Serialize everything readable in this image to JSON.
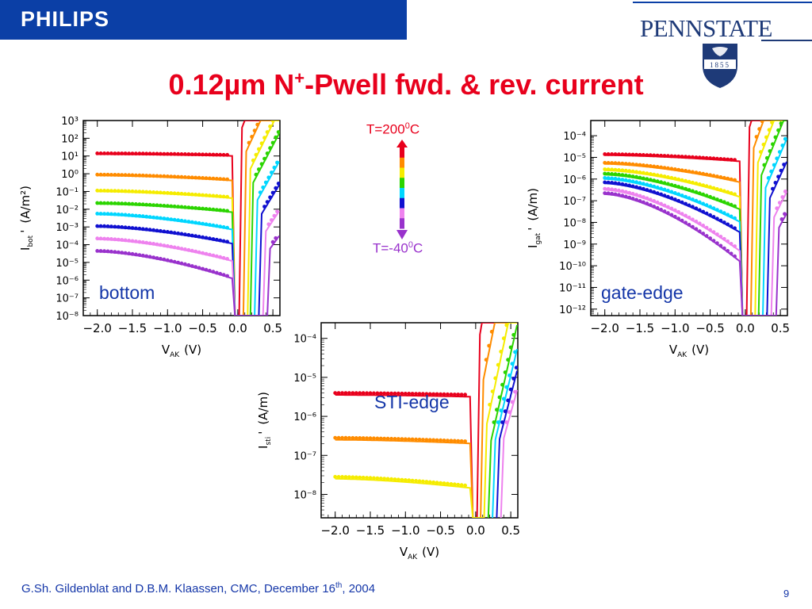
{
  "header": {
    "left_logo": "PHILIPS",
    "right_logo": "PENNSTATE",
    "seal_year": "1855",
    "title_main": "0.12µm N",
    "title_sup": "+",
    "title_rest": "-Pwell fwd. & rev. current"
  },
  "temperature_legend": {
    "top_label": "T=200",
    "top_sup": "0",
    "top_unit": "C",
    "bottom_label": "T=-40",
    "bottom_sup": "0",
    "bottom_unit": "C",
    "colors": [
      "#e8001c",
      "#ff8c00",
      "#f5ec00",
      "#2bd400",
      "#00d6ff",
      "#1010d0",
      "#ee82ee",
      "#9932cc"
    ]
  },
  "footer": {
    "text": "G.Sh. Gildenblat and D.B.M. Klaassen, CMC, December 16",
    "sup": "th",
    "text_end": ", 2004",
    "page": "9"
  },
  "chart_data": [
    {
      "type": "scatter",
      "panel_label": "bottom",
      "xlabel": "V_AK (V)",
      "ylabel": "I_bot' (A/m²)",
      "xlim": [
        -2.2,
        0.6
      ],
      "ylim": [
        -8,
        3
      ],
      "y_scale": "log",
      "x_ticks": [
        "−2.0",
        "−1.5",
        "−1.0",
        "−0.5",
        "0.0",
        "0.5"
      ],
      "y_ticks": [
        "10³",
        "10²",
        "10¹",
        "10⁰",
        "10⁻¹",
        "10⁻²",
        "10⁻³",
        "10⁻⁴",
        "10⁻⁵",
        "10⁻⁶",
        "10⁻⁷",
        "10⁻⁸"
      ],
      "series": [
        {
          "color": "#e8001c",
          "rev_log_start": 1.1,
          "rev_log_end": 1.0,
          "fwd_x0": 0.1,
          "fwd_slope": 20
        },
        {
          "color": "#ff8c00",
          "rev_log_start": -0.1,
          "rev_log_end": -0.4,
          "fwd_x0": 0.16,
          "fwd_slope": 17
        },
        {
          "color": "#f5ec00",
          "rev_log_start": -1.0,
          "rev_log_end": -1.4,
          "fwd_x0": 0.22,
          "fwd_slope": 16
        },
        {
          "color": "#2bd400",
          "rev_log_start": -1.7,
          "rev_log_end": -2.2,
          "fwd_x0": 0.26,
          "fwd_slope": 15
        },
        {
          "color": "#00d6ff",
          "rev_log_start": -2.3,
          "rev_log_end": -3.2,
          "fwd_x0": 0.32,
          "fwd_slope": 14
        },
        {
          "color": "#1010d0",
          "rev_log_start": -3.0,
          "rev_log_end": -4.0,
          "fwd_x0": 0.38,
          "fwd_slope": 13
        },
        {
          "color": "#ee82ee",
          "rev_log_start": -3.7,
          "rev_log_end": -5.0,
          "fwd_x0": 0.44,
          "fwd_slope": 12
        },
        {
          "color": "#9932cc",
          "rev_log_start": -4.4,
          "rev_log_end": -6.0,
          "fwd_x0": 0.5,
          "fwd_slope": 11
        }
      ]
    },
    {
      "type": "scatter",
      "panel_label": "gate-edge",
      "xlabel": "V_AK (V)",
      "ylabel": "I_gat' (A/m)",
      "xlim": [
        -2.2,
        0.6
      ],
      "ylim": [
        -12.3,
        -3.3
      ],
      "y_scale": "log",
      "x_ticks": [
        "−2.0",
        "−1.5",
        "−1.0",
        "−0.5",
        "0.0",
        "0.5"
      ],
      "y_ticks": [
        "10⁻⁴",
        "10⁻⁵",
        "10⁻⁶",
        "10⁻⁷",
        "10⁻⁸",
        "10⁻⁹",
        "10⁻¹⁰",
        "10⁻¹¹",
        "10⁻¹²"
      ],
      "series": [
        {
          "color": "#e8001c",
          "rev_log_start": -4.9,
          "rev_log_end": -5.2,
          "fwd_x0": 0.1,
          "fwd_slope": 20
        },
        {
          "color": "#ff8c00",
          "rev_log_start": -5.3,
          "rev_log_end": -6.2,
          "fwd_x0": 0.16,
          "fwd_slope": 18
        },
        {
          "color": "#f5ec00",
          "rev_log_start": -5.6,
          "rev_log_end": -6.9,
          "fwd_x0": 0.22,
          "fwd_slope": 17
        },
        {
          "color": "#2bd400",
          "rev_log_start": -5.8,
          "rev_log_end": -7.5,
          "fwd_x0": 0.27,
          "fwd_slope": 16
        },
        {
          "color": "#00d6ff",
          "rev_log_start": -6.0,
          "rev_log_end": -8.1,
          "fwd_x0": 0.33,
          "fwd_slope": 15
        },
        {
          "color": "#1010d0",
          "rev_log_start": -6.2,
          "rev_log_end": -8.6,
          "fwd_x0": 0.39,
          "fwd_slope": 14
        },
        {
          "color": "#ee82ee",
          "rev_log_start": -6.5,
          "rev_log_end": -9.5,
          "fwd_x0": 0.45,
          "fwd_slope": 13
        },
        {
          "color": "#9932cc",
          "rev_log_start": -6.7,
          "rev_log_end": -10.0,
          "fwd_x0": 0.52,
          "fwd_slope": 12
        }
      ]
    },
    {
      "type": "scatter",
      "panel_label": "STI-edge",
      "xlabel": "V_AK (V)",
      "ylabel": "I_sti' (A/m)",
      "xlim": [
        -2.2,
        0.6
      ],
      "ylim": [
        -8.6,
        -3.6
      ],
      "y_scale": "log",
      "x_ticks": [
        "−2.0",
        "−1.5",
        "−1.0",
        "−0.5",
        "0.0",
        "0.5"
      ],
      "y_ticks": [
        "10⁻⁴",
        "10⁻⁵",
        "10⁻⁶",
        "10⁻⁷",
        "10⁻⁸"
      ],
      "series": [
        {
          "color": "#e8001c",
          "rev_log_start": -5.45,
          "rev_log_end": -5.5,
          "fwd_x0": 0.1,
          "fwd_slope": 20
        },
        {
          "color": "#ff8c00",
          "rev_log_start": -6.6,
          "rev_log_end": -6.7,
          "fwd_x0": 0.15,
          "fwd_slope": 18
        },
        {
          "color": "#f5ec00",
          "rev_log_start": -7.6,
          "rev_log_end": -7.85,
          "fwd_x0": 0.2,
          "fwd_slope": 17
        },
        {
          "color": "#2bd400",
          "rev_log_start": null,
          "rev_log_end": null,
          "fwd_x0": 0.26,
          "fwd_slope": 16
        },
        {
          "color": "#00d6ff",
          "rev_log_start": null,
          "rev_log_end": null,
          "fwd_x0": 0.32,
          "fwd_slope": 15
        },
        {
          "color": "#1010d0",
          "rev_log_start": null,
          "rev_log_end": null,
          "fwd_x0": 0.38,
          "fwd_slope": 14
        },
        {
          "color": "#ee82ee",
          "rev_log_start": null,
          "rev_log_end": null,
          "fwd_x0": 0.44,
          "fwd_slope": 13
        }
      ]
    }
  ]
}
